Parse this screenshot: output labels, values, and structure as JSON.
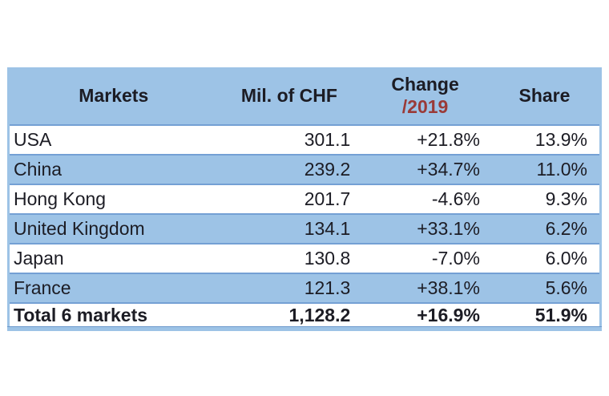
{
  "table": {
    "header": {
      "markets": "Markets",
      "chf": "Mil. of CHF",
      "change_line1": "Change",
      "change_line2": "/2019",
      "share": "Share"
    },
    "rows": [
      {
        "market": "USA",
        "chf": "301.1",
        "change": "+21.8%",
        "share": "13.9%"
      },
      {
        "market": "China",
        "chf": "239.2",
        "change": "+34.7%",
        "share": "11.0%"
      },
      {
        "market": "Hong Kong",
        "chf": "201.7",
        "change": "-4.6%",
        "share": "9.3%"
      },
      {
        "market": "United Kingdom",
        "chf": "134.1",
        "change": "+33.1%",
        "share": "6.2%"
      },
      {
        "market": "Japan",
        "chf": "130.8",
        "change": "-7.0%",
        "share": "6.0%"
      },
      {
        "market": "France",
        "chf": "121.3",
        "change": "+38.1%",
        "share": "5.6%"
      }
    ],
    "total": {
      "market": "Total 6 markets",
      "chf": "1,128.2",
      "change": "+16.9%",
      "share": "51.9%"
    }
  },
  "colors": {
    "header_fill": "#9dc3e6",
    "row_alt_fill": "#9dc3e6",
    "row_separator": "#74a0d4",
    "text": "#1c1c24",
    "change_year_red": "#9a3a38",
    "page_background": "#ffffff"
  },
  "chart_data": {
    "type": "table",
    "title": "Markets overview - Mil. of CHF, Change /2019, Share",
    "columns": [
      "Markets",
      "Mil. of CHF",
      "Change /2019",
      "Share"
    ],
    "rows": [
      [
        "USA",
        301.1,
        "+21.8%",
        "13.9%"
      ],
      [
        "China",
        239.2,
        "+34.7%",
        "11.0%"
      ],
      [
        "Hong Kong",
        201.7,
        "-4.6%",
        "9.3%"
      ],
      [
        "United Kingdom",
        134.1,
        "+33.1%",
        "6.2%"
      ],
      [
        "Japan",
        130.8,
        "-7.0%",
        "6.0%"
      ],
      [
        "France",
        121.3,
        "+38.1%",
        "5.6%"
      ]
    ],
    "total_row": [
      "Total 6 markets",
      1128.2,
      "+16.9%",
      "51.9%"
    ]
  }
}
